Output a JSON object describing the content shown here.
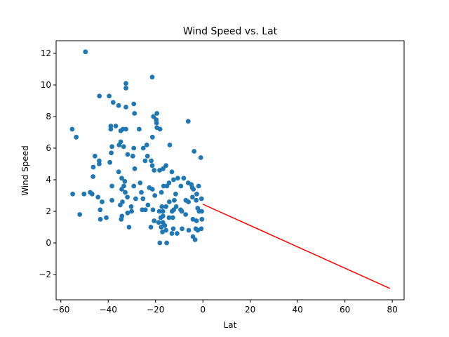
{
  "chart_data": {
    "type": "scatter",
    "title": "Wind Speed vs. Lat",
    "xlabel": "Lat",
    "ylabel": "Wind Speed",
    "xlim": [
      -62,
      85
    ],
    "ylim": [
      -3.6,
      12.8
    ],
    "xticks": [
      -60,
      -40,
      -20,
      0,
      20,
      40,
      60,
      80
    ],
    "yticks": [
      -2,
      0,
      2,
      4,
      6,
      8,
      10,
      12
    ],
    "grid": false,
    "colors": {
      "points": "#1f77b4",
      "regression": "#ff0000"
    },
    "series": [
      {
        "type": "scatter",
        "points": [
          [
            -49.6,
            12.1
          ],
          [
            -21.4,
            10.5
          ],
          [
            -32.5,
            10.1
          ],
          [
            -32.5,
            9.8
          ],
          [
            -43.7,
            9.3
          ],
          [
            -39.6,
            9.3
          ],
          [
            -37.9,
            8.9
          ],
          [
            -35.6,
            8.7
          ],
          [
            -32.5,
            8.6
          ],
          [
            -29.2,
            8.8
          ],
          [
            -28.9,
            8.2
          ],
          [
            -19.4,
            8.2
          ],
          [
            -20.9,
            8.0
          ],
          [
            -19.7,
            7.8
          ],
          [
            -19.6,
            7.6
          ],
          [
            -6.2,
            7.7
          ],
          [
            -38.9,
            7.4
          ],
          [
            -36.8,
            7.4
          ],
          [
            -33.8,
            7.2
          ],
          [
            -32.5,
            7.2
          ],
          [
            -26.9,
            7.2
          ],
          [
            -19.4,
            7.3
          ],
          [
            -18.1,
            7.2
          ],
          [
            -55.2,
            7.2
          ],
          [
            -38.9,
            7.2
          ],
          [
            -34.7,
            7.1
          ],
          [
            -21.3,
            6.7
          ],
          [
            -53.5,
            6.7
          ],
          [
            -34.7,
            6.4
          ],
          [
            -35.4,
            6.2
          ],
          [
            -33.5,
            6.1
          ],
          [
            -29.2,
            6.0
          ],
          [
            -25.2,
            6.0
          ],
          [
            -23.7,
            6.2
          ],
          [
            -14.0,
            6.2
          ],
          [
            -38.4,
            6.1
          ],
          [
            -3.7,
            5.8
          ],
          [
            -38.7,
            5.7
          ],
          [
            -31.8,
            5.6
          ],
          [
            -29.6,
            5.5
          ],
          [
            -23.4,
            5.5
          ],
          [
            -45.6,
            5.5
          ],
          [
            -43.8,
            5.2
          ],
          [
            -39.3,
            5.1
          ],
          [
            -21.8,
            5.2
          ],
          [
            -0.9,
            5.4
          ],
          [
            -24.4,
            5.2
          ],
          [
            -43.8,
            5.0
          ],
          [
            -21.4,
            4.9
          ],
          [
            -20.6,
            4.6
          ],
          [
            -18.3,
            4.6
          ],
          [
            -15.6,
            4.9
          ],
          [
            -16.8,
            4.7
          ],
          [
            -28.8,
            4.7
          ],
          [
            -46.3,
            4.8
          ],
          [
            -13.1,
            4.5
          ],
          [
            -35.6,
            4.5
          ],
          [
            -46.4,
            4.2
          ],
          [
            -34.3,
            4.1
          ],
          [
            -33.0,
            3.9
          ],
          [
            -26.5,
            3.8
          ],
          [
            -14.3,
            3.8
          ],
          [
            -8.1,
            4.1
          ],
          [
            -6.2,
            3.8
          ],
          [
            -4.9,
            3.7
          ],
          [
            -12.4,
            4.0
          ],
          [
            -10.6,
            4.1
          ],
          [
            -33.4,
            3.6
          ],
          [
            -38.4,
            3.6
          ],
          [
            -29.2,
            3.6
          ],
          [
            -22.6,
            3.5
          ],
          [
            -21.3,
            3.4
          ],
          [
            -16.6,
            3.6
          ],
          [
            -15.2,
            3.6
          ],
          [
            -9.3,
            3.6
          ],
          [
            -4.5,
            3.5
          ],
          [
            -1.8,
            3.6
          ],
          [
            -34.3,
            3.4
          ],
          [
            -32.8,
            3.2
          ],
          [
            -55.0,
            3.1
          ],
          [
            -50.2,
            3.1
          ],
          [
            -47.6,
            3.2
          ],
          [
            -46.8,
            3.1
          ],
          [
            -44.3,
            2.9
          ],
          [
            -31.9,
            2.9
          ],
          [
            -26.0,
            3.2
          ],
          [
            -17.5,
            3.2
          ],
          [
            -11.5,
            3.1
          ],
          [
            -4.0,
            3.4
          ],
          [
            -2.6,
            3.1
          ],
          [
            -0.6,
            2.8
          ],
          [
            -38.4,
            2.7
          ],
          [
            -42.6,
            2.6
          ],
          [
            -34.0,
            2.6
          ],
          [
            -28.4,
            2.8
          ],
          [
            -25.3,
            2.8
          ],
          [
            -20.3,
            3.0
          ],
          [
            -12.1,
            2.7
          ],
          [
            -7.2,
            2.7
          ],
          [
            -4.4,
            2.9
          ],
          [
            -2.8,
            2.7
          ],
          [
            -14.2,
            2.6
          ],
          [
            -34.9,
            2.4
          ],
          [
            -30.3,
            2.3
          ],
          [
            -17.3,
            2.3
          ],
          [
            -16.9,
            2.0
          ],
          [
            -12.3,
            2.1
          ],
          [
            -9.4,
            2.1
          ],
          [
            -6.1,
            2.6
          ],
          [
            -43.4,
            2.1
          ],
          [
            -30.1,
            2.0
          ],
          [
            -25.6,
            2.1
          ],
          [
            -24.3,
            2.1
          ],
          [
            -23.2,
            2.4
          ],
          [
            -21.1,
            2.1
          ],
          [
            -18.4,
            2.0
          ],
          [
            -16.9,
            1.7
          ],
          [
            -15.6,
            2.3
          ],
          [
            -13.0,
            2.0
          ],
          [
            -11.3,
            2.3
          ],
          [
            -8.9,
            2.0
          ],
          [
            -2.2,
            2.2
          ],
          [
            -1.6,
            2.0
          ],
          [
            -0.5,
            2.0
          ],
          [
            -52.0,
            1.8
          ],
          [
            -34.2,
            1.7
          ],
          [
            -31.8,
            1.9
          ],
          [
            -40.8,
            1.6
          ],
          [
            -43.3,
            1.5
          ],
          [
            -34.5,
            1.5
          ],
          [
            -17.8,
            1.6
          ],
          [
            -14.3,
            1.6
          ],
          [
            -12.7,
            1.6
          ],
          [
            -7.3,
            1.8
          ],
          [
            -4.2,
            1.5
          ],
          [
            -0.4,
            1.5
          ],
          [
            -2.7,
            1.4
          ],
          [
            -16.9,
            1.3
          ],
          [
            -18.7,
            1.3
          ],
          [
            -16.1,
            1.1
          ],
          [
            -20.6,
            1.4
          ],
          [
            -31.2,
            1.0
          ],
          [
            -22.0,
            1.0
          ],
          [
            -17.6,
            1.0
          ],
          [
            -8.8,
            0.9
          ],
          [
            -6.0,
            0.8
          ],
          [
            -3.0,
            0.9
          ],
          [
            -2.2,
            0.8
          ],
          [
            -0.7,
            0.9
          ],
          [
            -12.5,
            0.9
          ],
          [
            -15.6,
            0.8
          ],
          [
            -13.1,
            0.6
          ],
          [
            -10.9,
            0.6
          ],
          [
            -17.1,
            0.7
          ],
          [
            -4.2,
            0.4
          ],
          [
            -3.3,
            0.2
          ],
          [
            -18.2,
            0.0
          ],
          [
            -15.3,
            0.0
          ]
        ]
      },
      {
        "type": "line",
        "points": [
          [
            0,
            2.45
          ],
          [
            79,
            -2.88
          ]
        ]
      }
    ]
  }
}
